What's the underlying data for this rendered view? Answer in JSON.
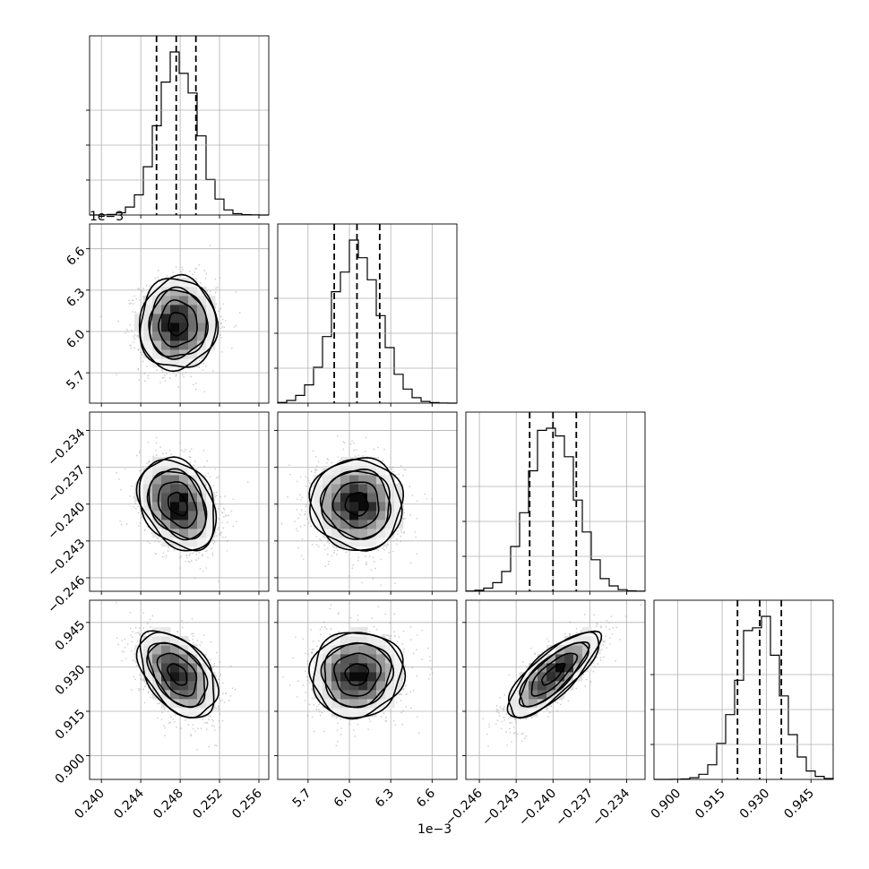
{
  "chart_data": {
    "type": "corner",
    "grid": true,
    "parameters": [
      {
        "index": 0,
        "range": [
          0.2388,
          0.257
        ],
        "ticks": [
          0.24,
          0.244,
          0.248,
          0.252,
          0.256
        ],
        "tick_labels": [
          "0.240",
          "0.244",
          "0.248",
          "0.252",
          "0.256"
        ],
        "multiplier": "1e−3",
        "mean": 0.24775,
        "std": 0.00195,
        "quantiles": [
          0.2456,
          0.2476,
          0.2496
        ]
      },
      {
        "index": 1,
        "range": [
          5.48,
          6.78
        ],
        "ticks": [
          5.7,
          6.0,
          6.3,
          6.6
        ],
        "tick_labels": [
          "5.7",
          "6.0",
          "6.3",
          "6.6"
        ],
        "multiplier": "1e−3",
        "mean": 6.055,
        "std": 0.165,
        "quantiles": [
          5.89,
          6.055,
          6.22
        ]
      },
      {
        "index": 2,
        "range": [
          -0.2471,
          -0.2325
        ],
        "ticks": [
          -0.246,
          -0.243,
          -0.24,
          -0.237,
          -0.234
        ],
        "tick_labels": [
          "−0.246",
          "−0.243",
          "−0.240",
          "−0.237",
          "−0.234"
        ],
        "multiplier": "",
        "mean": -0.24,
        "std": 0.00185,
        "quantiles": [
          -0.2419,
          -0.24,
          -0.2381
        ]
      },
      {
        "index": 3,
        "range": [
          0.892,
          0.9525
        ],
        "ticks": [
          0.9,
          0.915,
          0.93,
          0.945
        ],
        "tick_labels": [
          "0.900",
          "0.915",
          "0.930",
          "0.945"
        ],
        "multiplier": "",
        "mean": 0.9275,
        "std": 0.0072,
        "quantiles": [
          0.9202,
          0.9277,
          0.935
        ]
      }
    ],
    "correlations": [
      {
        "row": 1,
        "col": 0,
        "rho": 0.03
      },
      {
        "row": 2,
        "col": 0,
        "rho": -0.3
      },
      {
        "row": 2,
        "col": 1,
        "rho": -0.03
      },
      {
        "row": 3,
        "col": 0,
        "rho": -0.45
      },
      {
        "row": 3,
        "col": 1,
        "rho": 0.05
      },
      {
        "row": 3,
        "col": 2,
        "rho": 0.78
      }
    ],
    "histogram_bins": 20,
    "contour_levels_sigma": [
      0.5,
      1.0,
      1.5,
      2.0
    ]
  }
}
